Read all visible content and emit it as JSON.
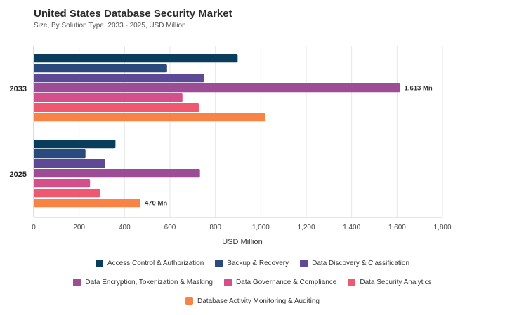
{
  "header": {
    "title": "United States Database Security Market",
    "subtitle": "Size, By Solution Type, 2033 - 2025, USD Million"
  },
  "chart_data": {
    "type": "bar",
    "orientation": "horizontal",
    "title": "United States Database Security Market",
    "subtitle": "Size, By Solution Type, 2033 - 2025, USD Million",
    "xlabel": "USD Million",
    "ylabel": "",
    "xlim": [
      0,
      1800
    ],
    "xticks": [
      0,
      200,
      400,
      600,
      800,
      1000,
      1200,
      1400,
      1600,
      1800
    ],
    "xtick_labels": [
      "0",
      "200",
      "400",
      "600",
      "800",
      "1,000",
      "1,200",
      "1,400",
      "1,600",
      "1,800"
    ],
    "grid": "vertical",
    "legend_position": "bottom",
    "categories": [
      "2033",
      "2025"
    ],
    "series": [
      {
        "name": "Access Control & Authorization",
        "color": "#0a3d5c",
        "values": [
          898,
          360
        ]
      },
      {
        "name": "Backup & Recovery",
        "color": "#2a4a7d",
        "values": [
          587,
          228
        ]
      },
      {
        "name": "Data Discovery & Classification",
        "color": "#5e4a94",
        "values": [
          750,
          315
        ]
      },
      {
        "name": "Data Encryption, Tokenization & Masking",
        "color": "#9c4d96",
        "values": [
          1613,
          732
        ]
      },
      {
        "name": "Data Governance & Compliance",
        "color": "#d4508a",
        "values": [
          655,
          248
        ]
      },
      {
        "name": "Data Security Analytics",
        "color": "#ef5871",
        "values": [
          727,
          292
        ]
      },
      {
        "name": "Database Activity Monitoring & Auditing",
        "color": "#f98245",
        "values": [
          1020,
          470
        ]
      }
    ],
    "annotations": [
      {
        "category": "2033",
        "series": "Data Encryption, Tokenization & Masking",
        "text": "1,613 Mn"
      },
      {
        "category": "2025",
        "series": "Database Activity Monitoring & Auditing",
        "text": "470 Mn"
      }
    ]
  }
}
